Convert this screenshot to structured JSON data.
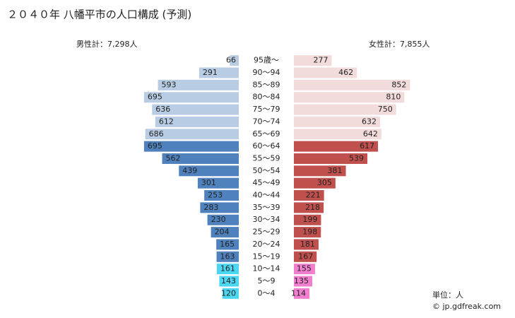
{
  "chart_data": {
    "type": "population-pyramid",
    "title": "２０４０年 八幡平市の人口構成 (予測)",
    "categories": [
      "95歳～",
      "90～94",
      "85～89",
      "80～84",
      "75～79",
      "70～74",
      "65～69",
      "60～64",
      "55～59",
      "50～54",
      "45～49",
      "40～44",
      "35～39",
      "30～34",
      "25～29",
      "20～24",
      "15～19",
      "10～14",
      "5～9",
      "0～4"
    ],
    "series": [
      {
        "name": "男性計：7,298人",
        "side": "left",
        "values": [
          66,
          291,
          593,
          695,
          636,
          612,
          686,
          695,
          562,
          439,
          301,
          253,
          283,
          230,
          204,
          165,
          163,
          161,
          143,
          120
        ],
        "colors": [
          "#b8cce4",
          "#b8cce4",
          "#b8cce4",
          "#b8cce4",
          "#b8cce4",
          "#b8cce4",
          "#b8cce4",
          "#4f81bd",
          "#4f81bd",
          "#4f81bd",
          "#4f81bd",
          "#4f81bd",
          "#4f81bd",
          "#4f81bd",
          "#4f81bd",
          "#4f81bd",
          "#4f81bd",
          "#4bd6f2",
          "#4bd6f2",
          "#4bd6f2"
        ]
      },
      {
        "name": "女性計：7,855人",
        "side": "right",
        "values": [
          277,
          462,
          852,
          810,
          750,
          632,
          642,
          617,
          539,
          381,
          305,
          221,
          218,
          199,
          198,
          181,
          167,
          155,
          135,
          114
        ],
        "colors": [
          "#f2dcdb",
          "#f2dcdb",
          "#f2dcdb",
          "#f2dcdb",
          "#f2dcdb",
          "#f2dcdb",
          "#f2dcdb",
          "#c0504d",
          "#c0504d",
          "#c0504d",
          "#c0504d",
          "#c0504d",
          "#c0504d",
          "#c0504d",
          "#c0504d",
          "#c0504d",
          "#c0504d",
          "#f27ed0",
          "#f27ed0",
          "#f27ed0"
        ]
      }
    ],
    "unit_note": "単位：人",
    "source": "© jp.gdfreak.com"
  }
}
